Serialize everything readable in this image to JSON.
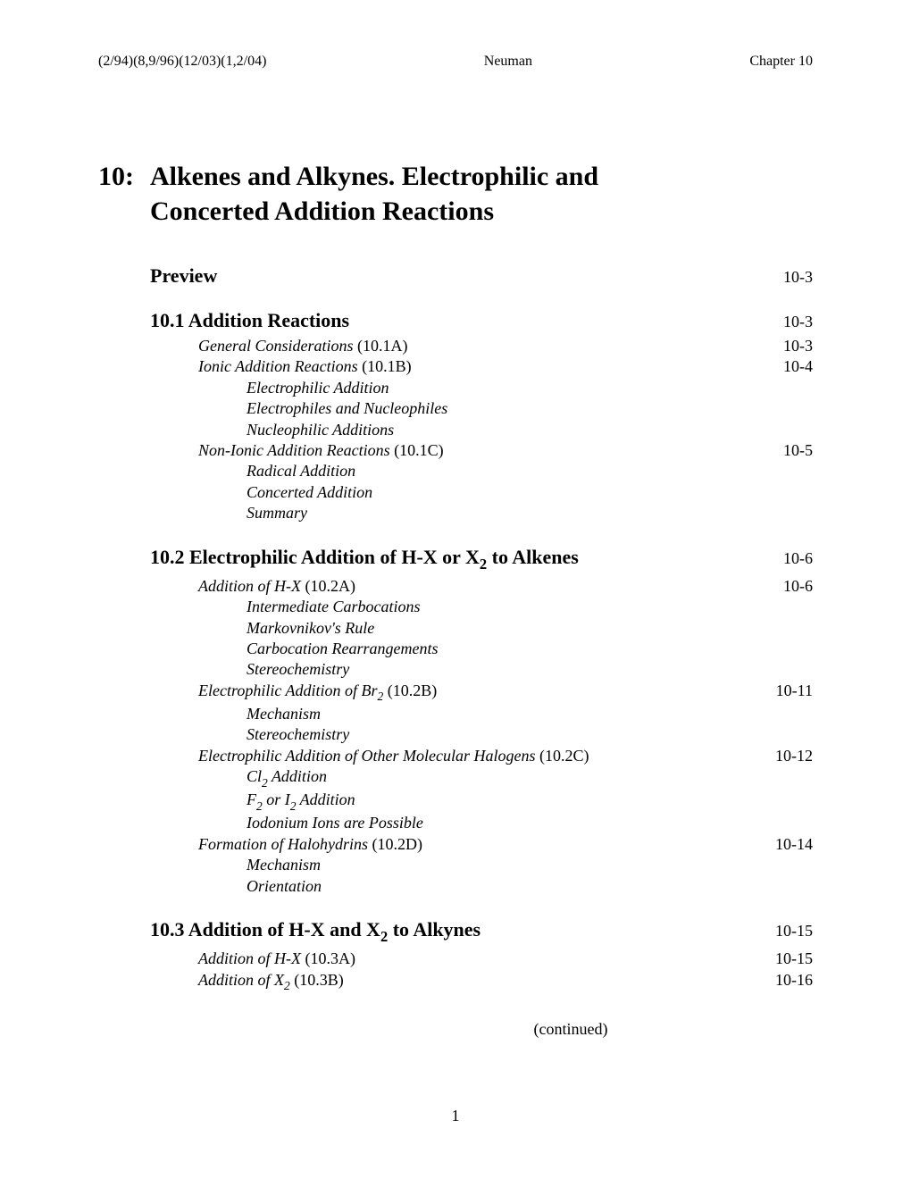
{
  "header": {
    "left": "(2/94)(8,9/96)(12/03)(1,2/04)",
    "center": "Neuman",
    "right": "Chapter 10"
  },
  "chapter": {
    "number": "10:",
    "title_line1": "Alkenes and Alkynes.  Electrophilic and",
    "title_line2": "Concerted Addition Reactions"
  },
  "toc": {
    "preview": {
      "label": "Preview",
      "page": "10-3"
    },
    "s1": {
      "heading": "10.1 Addition Reactions",
      "page": "10-3",
      "i1": {
        "label": "General Considerations",
        "code": " (10.1A)",
        "page": "10-3"
      },
      "i2": {
        "label": "Ionic Addition Reactions",
        "code": " (10.1B)",
        "page": "10-4"
      },
      "i2a": "Electrophilic Addition",
      "i2b": "Electrophiles and Nucleophiles",
      "i2c": "Nucleophilic Additions",
      "i3": {
        "label": "Non-Ionic Addition Reactions",
        "code": " (10.1C)",
        "page": "10-5"
      },
      "i3a": "Radical Addition",
      "i3b": "Concerted Addition",
      "i3c": "Summary"
    },
    "s2": {
      "heading_prefix": "10.2 Electrophilic Addition of H-X or X",
      "heading_sub": "2",
      "heading_suffix": " to Alkenes",
      "page": "10-6",
      "i1": {
        "label": "Addition of H-X",
        "code": " (10.2A)",
        "page": "10-6"
      },
      "i1a": "Intermediate Carbocations",
      "i1b": "Markovnikov's Rule",
      "i1c": "Carbocation Rearrangements",
      "i1d": "Stereochemistry",
      "i2": {
        "label_pre": "Electrophilic Addition of Br",
        "label_sub": "2",
        "code": " (10.2B)",
        "page": "10-11"
      },
      "i2a": "Mechanism",
      "i2b": "Stereochemistry",
      "i3": {
        "label": "Electrophilic Addition of Other Molecular Halogens",
        "code": " (10.2C)",
        "page": "10-12"
      },
      "i3a_pre": "Cl",
      "i3a_sub": "2",
      "i3a_suf": " Addition",
      "i3b_pre": "F",
      "i3b_sub": "2",
      "i3b_mid": " or I",
      "i3b_sub2": "2",
      "i3b_suf": " Addition",
      "i3c": "Iodonium Ions are Possible",
      "i4": {
        "label": "Formation of Halohydrins",
        "code": " (10.2D)",
        "page": "10-14"
      },
      "i4a": "Mechanism",
      "i4b": "Orientation"
    },
    "s3": {
      "heading_prefix": "10.3 Addition of H-X and X",
      "heading_sub": "2",
      "heading_suffix": " to Alkynes",
      "page": "10-15",
      "i1": {
        "label": "Addition of H-X",
        "code": " (10.3A)",
        "page": "10-15"
      },
      "i2": {
        "label_pre": "Addition of X",
        "label_sub": "2",
        "code": " (10.3B)",
        "page": "10-16"
      }
    }
  },
  "continued": "(continued)",
  "page_number": "1"
}
